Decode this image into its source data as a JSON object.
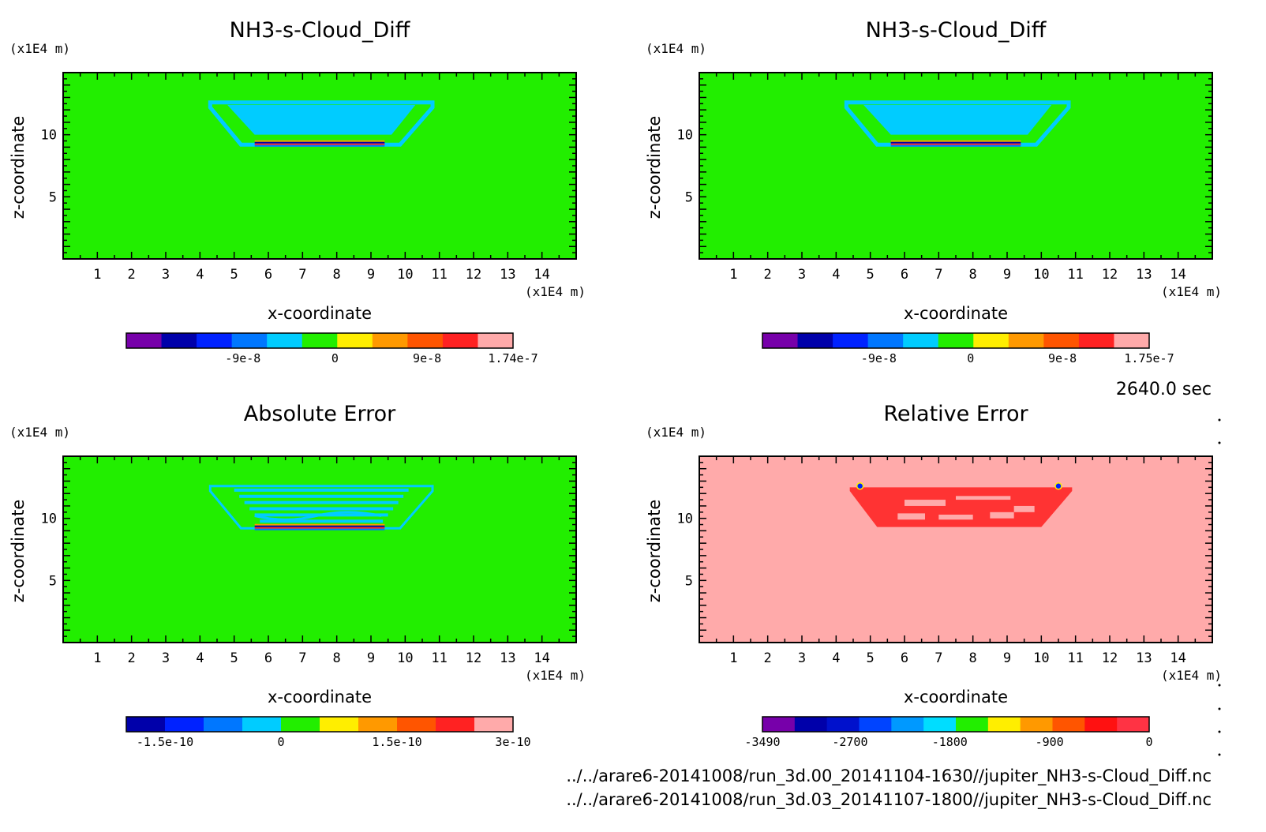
{
  "time_label": "2640.0 sec",
  "files": [
    "../../arare6-20141008/run_3d.00_20141104-1630//jupiter_NH3-s-Cloud_Diff.nc",
    "../../arare6-20141008/run_3d.03_20141107-1800//jupiter_NH3-s-Cloud_Diff.nc"
  ],
  "chart_data": [
    {
      "type": "heatmap",
      "title": "NH3-s-Cloud_Diff",
      "xlabel": "x-coordinate",
      "ylabel": "z-coordinate",
      "x_unit": "(x1E4 m)",
      "y_unit": "(x1E4 m)",
      "xlim": [
        0,
        15
      ],
      "ylim": [
        0,
        15
      ],
      "x_ticks": [
        "1",
        "2",
        "3",
        "4",
        "5",
        "6",
        "7",
        "8",
        "9",
        "10",
        "11",
        "12",
        "13",
        "14"
      ],
      "y_ticks": [
        "5",
        "10"
      ],
      "background_color": "#22ee00",
      "feature": "cloud",
      "feature_color": "#00ccff",
      "colorbar": {
        "colors": [
          "#7700aa",
          "#0000aa",
          "#0022ff",
          "#0077ff",
          "#00ccff",
          "#22ee00",
          "#ffee00",
          "#ff9900",
          "#ff5500",
          "#ff2222",
          "#ffaaaa"
        ],
        "labels": [
          "-9e-8",
          "0",
          "9e-8",
          "1.74e-7"
        ],
        "label_values": [
          -9e-08,
          0,
          9e-08,
          1.74e-07
        ],
        "vmin": -2.04e-07,
        "vmax": 1.74e-07
      }
    },
    {
      "type": "heatmap",
      "title": "NH3-s-Cloud_Diff",
      "xlabel": "x-coordinate",
      "ylabel": "z-coordinate",
      "x_unit": "(x1E4 m)",
      "y_unit": "(x1E4 m)",
      "xlim": [
        0,
        15
      ],
      "ylim": [
        0,
        15
      ],
      "x_ticks": [
        "1",
        "2",
        "3",
        "4",
        "5",
        "6",
        "7",
        "8",
        "9",
        "10",
        "11",
        "12",
        "13",
        "14"
      ],
      "y_ticks": [
        "5",
        "10"
      ],
      "background_color": "#22ee00",
      "feature": "cloud",
      "feature_color": "#00ccff",
      "colorbar": {
        "colors": [
          "#7700aa",
          "#0000aa",
          "#0022ff",
          "#0077ff",
          "#00ccff",
          "#22ee00",
          "#ffee00",
          "#ff9900",
          "#ff5500",
          "#ff2222",
          "#ffaaaa"
        ],
        "labels": [
          "-9e-8",
          "0",
          "9e-8",
          "1.75e-7"
        ],
        "label_values": [
          -9e-08,
          0,
          9e-08,
          1.75e-07
        ],
        "vmin": -2.04e-07,
        "vmax": 1.75e-07
      }
    },
    {
      "type": "heatmap",
      "title": "Absolute Error",
      "xlabel": "x-coordinate",
      "ylabel": "z-coordinate",
      "x_unit": "(x1E4 m)",
      "y_unit": "(x1E4 m)",
      "xlim": [
        0,
        15
      ],
      "ylim": [
        0,
        15
      ],
      "x_ticks": [
        "1",
        "2",
        "3",
        "4",
        "5",
        "6",
        "7",
        "8",
        "9",
        "10",
        "11",
        "12",
        "13",
        "14"
      ],
      "y_ticks": [
        "5",
        "10"
      ],
      "background_color": "#22ee00",
      "feature": "error",
      "feature_color": "#00ccff",
      "colorbar": {
        "colors": [
          "#0000aa",
          "#0022ff",
          "#0077ff",
          "#00ccff",
          "#22ee00",
          "#ffee00",
          "#ff9900",
          "#ff5500",
          "#ff2222",
          "#ffaaaa"
        ],
        "labels": [
          "-1.5e-10",
          "0",
          "1.5e-10",
          "3e-10"
        ],
        "label_values": [
          -1.5e-10,
          0,
          1.5e-10,
          3e-10
        ],
        "vmin": -2e-10,
        "vmax": 3e-10
      }
    },
    {
      "type": "heatmap",
      "title": "Relative Error",
      "xlabel": "x-coordinate",
      "ylabel": "z-coordinate",
      "x_unit": "(x1E4 m)",
      "y_unit": "(x1E4 m)",
      "xlim": [
        0,
        15
      ],
      "ylim": [
        0,
        15
      ],
      "x_ticks": [
        "1",
        "2",
        "3",
        "4",
        "5",
        "6",
        "7",
        "8",
        "9",
        "10",
        "11",
        "12",
        "13",
        "14"
      ],
      "y_ticks": [
        "5",
        "10"
      ],
      "background_color": "#ffaaaa",
      "feature": "relative",
      "feature_color": "#ff3333",
      "colorbar": {
        "colors": [
          "#7700aa",
          "#0000aa",
          "#0011cc",
          "#0044ff",
          "#0099ff",
          "#00ddff",
          "#22ee00",
          "#ffee00",
          "#ff9900",
          "#ff5500",
          "#ff1111",
          "#ff3344"
        ],
        "labels": [
          "-3490",
          "-2700",
          "-1800",
          "-900",
          "0"
        ],
        "label_values": [
          -3490,
          -2700,
          -1800,
          -900,
          0
        ],
        "vmin": -3490,
        "vmax": 0
      }
    }
  ]
}
